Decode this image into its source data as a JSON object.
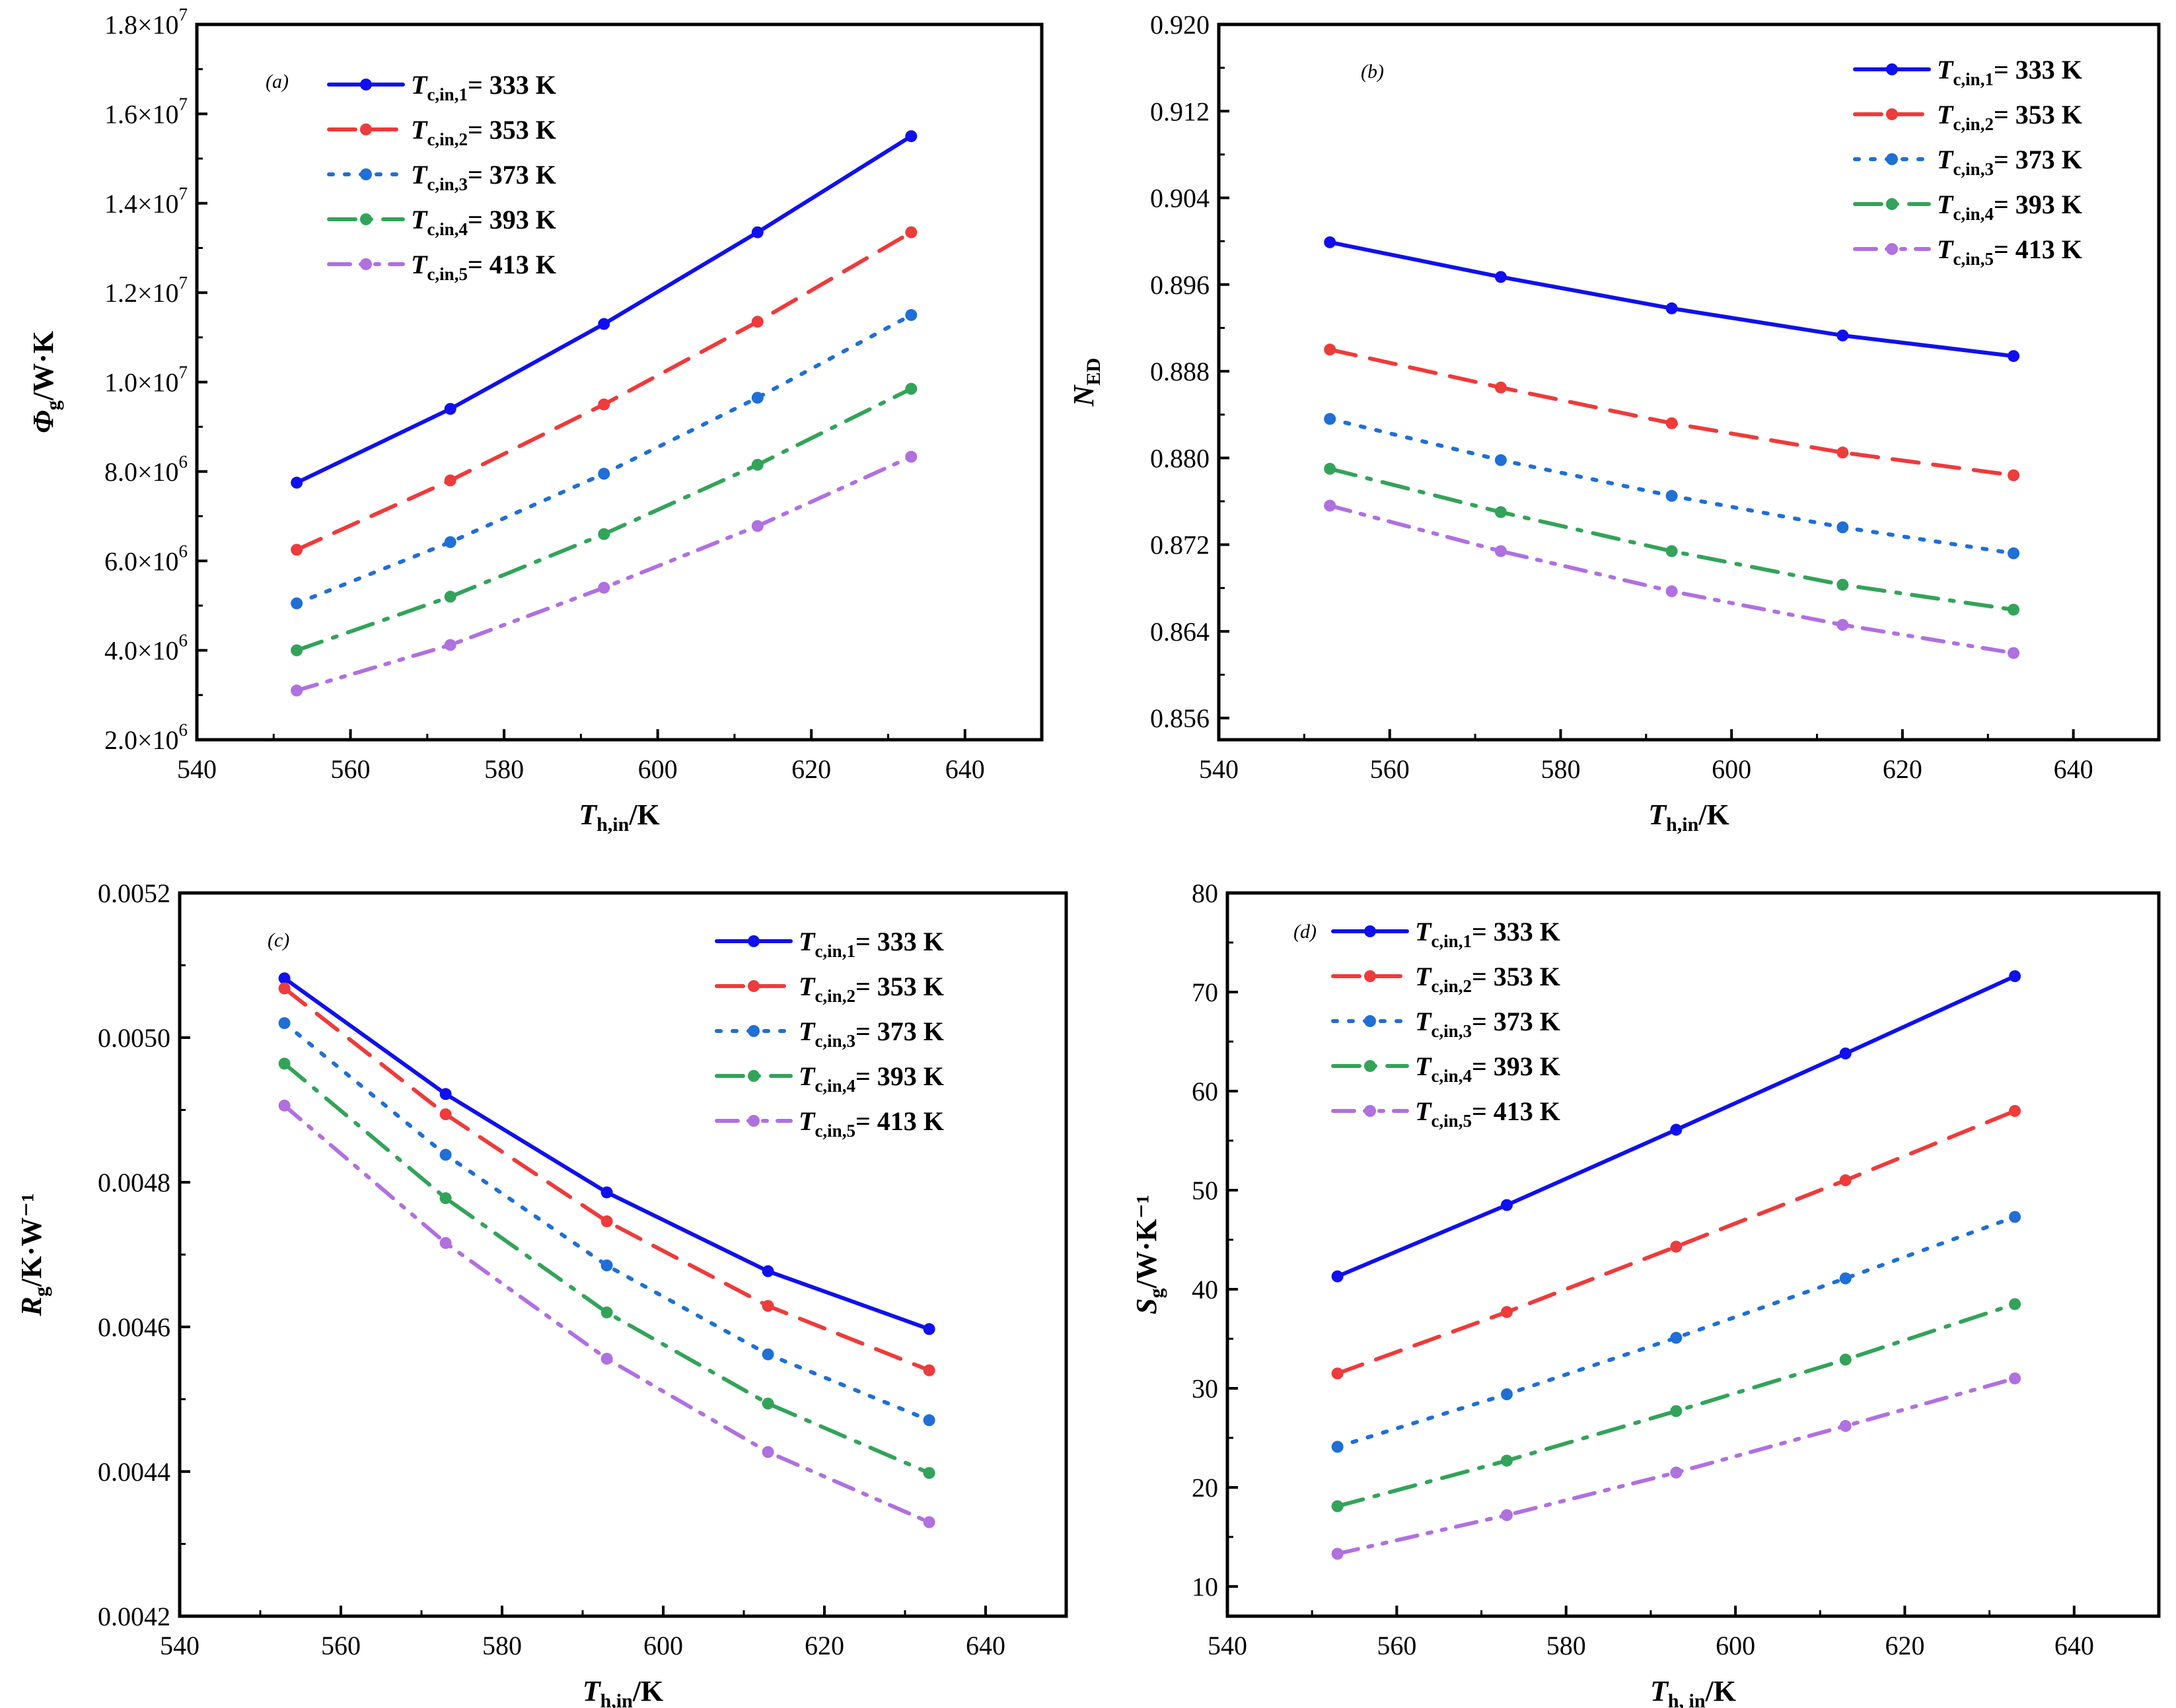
{
  "chart_data": [
    {
      "type": "line",
      "panel_label": "(a)",
      "x": [
        553,
        573,
        593,
        613,
        633
      ],
      "xlim": [
        540,
        650
      ],
      "xticks": [
        "540",
        "560",
        "580",
        "600",
        "620",
        "640"
      ],
      "xlabel": {
        "main": "T",
        "sub": "h,in",
        "suffix": "/K"
      },
      "ylabel": {
        "main": "Φ",
        "sub": "g",
        "suffix": "/W·K"
      },
      "ylim": [
        2000000,
        18000000
      ],
      "yticks": [
        {
          "value": 2000000,
          "mant": "2.0×10",
          "exp": "6"
        },
        {
          "value": 4000000,
          "mant": "4.0×10",
          "exp": "6"
        },
        {
          "value": 6000000,
          "mant": "6.0×10",
          "exp": "6"
        },
        {
          "value": 8000000,
          "mant": "8.0×10",
          "exp": "6"
        },
        {
          "value": 10000000,
          "mant": "1.0×10",
          "exp": "7"
        },
        {
          "value": 12000000,
          "mant": "1.2×10",
          "exp": "7"
        },
        {
          "value": 14000000,
          "mant": "1.4×10",
          "exp": "7"
        },
        {
          "value": 16000000,
          "mant": "1.6×10",
          "exp": "7"
        },
        {
          "value": 18000000,
          "mant": "1.8×10",
          "exp": "7"
        }
      ],
      "series": [
        {
          "name": "Tc,in,1= 333 K",
          "values": [
            7750000,
            9400000,
            11300000,
            13350000,
            15500000
          ]
        },
        {
          "name": "Tc,in,2= 353 K",
          "values": [
            6250000,
            7800000,
            9500000,
            11350000,
            13350000
          ]
        },
        {
          "name": "Tc,in,3= 373 K",
          "values": [
            5050000,
            6420000,
            7950000,
            9650000,
            11500000
          ]
        },
        {
          "name": "Tc,in,4= 393 K",
          "values": [
            4000000,
            5200000,
            6600000,
            8150000,
            9850000
          ]
        },
        {
          "name": "Tc,in,5= 413 K",
          "values": [
            3100000,
            4120000,
            5400000,
            6780000,
            8330000
          ]
        }
      ]
    },
    {
      "type": "line",
      "panel_label": "(b)",
      "x": [
        553,
        573,
        593,
        613,
        633
      ],
      "xlim": [
        540,
        650
      ],
      "xticks": [
        "540",
        "560",
        "580",
        "600",
        "620",
        "640"
      ],
      "xlabel": {
        "main": "T",
        "sub": "h,in",
        "suffix": "/K"
      },
      "ylabel": {
        "main": "N",
        "sub": "ED",
        "suffix": ""
      },
      "ylim": [
        0.854,
        0.92
      ],
      "yticks": [
        {
          "value": 0.856,
          "mant": "0.856"
        },
        {
          "value": 0.864,
          "mant": "0.864"
        },
        {
          "value": 0.872,
          "mant": "0.872"
        },
        {
          "value": 0.88,
          "mant": "0.880"
        },
        {
          "value": 0.888,
          "mant": "0.888"
        },
        {
          "value": 0.896,
          "mant": "0.896"
        },
        {
          "value": 0.904,
          "mant": "0.904"
        },
        {
          "value": 0.912,
          "mant": "0.912"
        },
        {
          "value": 0.92,
          "mant": "0.920"
        }
      ],
      "series": [
        {
          "name": "Tc,in,1= 333 K",
          "values": [
            0.8999,
            0.8967,
            0.8938,
            0.8913,
            0.8894
          ]
        },
        {
          "name": "Tc,in,2= 353 K",
          "values": [
            0.89,
            0.8865,
            0.8832,
            0.8805,
            0.8784
          ]
        },
        {
          "name": "Tc,in,3= 373 K",
          "values": [
            0.8836,
            0.8798,
            0.8765,
            0.8736,
            0.8712
          ]
        },
        {
          "name": "Tc,in,4= 393 K",
          "values": [
            0.879,
            0.875,
            0.8714,
            0.8683,
            0.866
          ]
        },
        {
          "name": "Tc,in,5= 413 K",
          "values": [
            0.8756,
            0.8714,
            0.8677,
            0.8646,
            0.862
          ]
        }
      ]
    },
    {
      "type": "line",
      "panel_label": "(c)",
      "x": [
        553,
        573,
        593,
        613,
        633
      ],
      "xlim": [
        540,
        650
      ],
      "xticks": [
        "540",
        "560",
        "580",
        "600",
        "620",
        "640"
      ],
      "xlabel": {
        "main": "T",
        "sub": "h,in",
        "suffix": "/K"
      },
      "ylabel": {
        "main": "R",
        "sub": "g",
        "suffix": "/K·W⁻¹"
      },
      "ylim": [
        0.0042,
        0.0052
      ],
      "yticks": [
        {
          "value": 0.0042,
          "mant": "0.0042"
        },
        {
          "value": 0.0044,
          "mant": "0.0044"
        },
        {
          "value": 0.0046,
          "mant": "0.0046"
        },
        {
          "value": 0.0048,
          "mant": "0.0048"
        },
        {
          "value": 0.005,
          "mant": "0.0050"
        },
        {
          "value": 0.0052,
          "mant": "0.0052"
        }
      ],
      "series": [
        {
          "name": "Tc,in,1= 333 K",
          "values": [
            0.005082,
            0.004922,
            0.004786,
            0.004677,
            0.004597
          ]
        },
        {
          "name": "Tc,in,2= 353 K",
          "values": [
            0.005068,
            0.004894,
            0.004746,
            0.004629,
            0.00454
          ]
        },
        {
          "name": "Tc,in,3= 373 K",
          "values": [
            0.00502,
            0.004838,
            0.004685,
            0.004562,
            0.004471
          ]
        },
        {
          "name": "Tc,in,4= 393 K",
          "values": [
            0.004964,
            0.004778,
            0.00462,
            0.004494,
            0.004398
          ]
        },
        {
          "name": "Tc,in,5= 413 K",
          "values": [
            0.004906,
            0.004716,
            0.004556,
            0.004427,
            0.00433
          ]
        }
      ]
    },
    {
      "type": "line",
      "panel_label": "(d)",
      "x": [
        553,
        573,
        593,
        613,
        633
      ],
      "xlim": [
        540,
        650
      ],
      "xticks": [
        "540",
        "560",
        "580",
        "600",
        "620",
        "640"
      ],
      "xlabel": {
        "main": "T",
        "sub": "h, in",
        "suffix": "/K"
      },
      "ylabel": {
        "main": "S",
        "sub": "g",
        "suffix": "/W·K⁻¹"
      },
      "ylim": [
        7,
        80
      ],
      "yticks": [
        {
          "value": 10,
          "mant": "10"
        },
        {
          "value": 20,
          "mant": "20"
        },
        {
          "value": 30,
          "mant": "30"
        },
        {
          "value": 40,
          "mant": "40"
        },
        {
          "value": 50,
          "mant": "50"
        },
        {
          "value": 60,
          "mant": "60"
        },
        {
          "value": 70,
          "mant": "70"
        },
        {
          "value": 80,
          "mant": "80"
        }
      ],
      "series": [
        {
          "name": "Tc,in,1= 333 K",
          "values": [
            41.3,
            48.5,
            56.1,
            63.8,
            71.6
          ]
        },
        {
          "name": "Tc,in,2= 353 K",
          "values": [
            31.5,
            37.7,
            44.3,
            51.0,
            58.0
          ]
        },
        {
          "name": "Tc,in,3= 373 K",
          "values": [
            24.1,
            29.4,
            35.1,
            41.1,
            47.3
          ]
        },
        {
          "name": "Tc,in,4= 393 K",
          "values": [
            18.1,
            22.7,
            27.7,
            32.9,
            38.5
          ]
        },
        {
          "name": "Tc,in,5= 413 K",
          "values": [
            13.3,
            17.2,
            21.5,
            26.2,
            31.0
          ]
        }
      ]
    }
  ],
  "legend": [
    {
      "main": "T",
      "sub": "c,in,1",
      "rest": "= 333 K",
      "color": "#1010ee",
      "style": "solid"
    },
    {
      "main": "T",
      "sub": "c,in,2",
      "rest": "= 353 K",
      "color": "#ee3b3b",
      "style": "dash"
    },
    {
      "main": "T",
      "sub": "c,in,3",
      "rest": "= 373 K",
      "color": "#1f6fd6",
      "style": "dot"
    },
    {
      "main": "T",
      "sub": "c,in,4",
      "rest": "= 393 K",
      "color": "#33a35a",
      "style": "dashdot"
    },
    {
      "main": "T",
      "sub": "c,in,5",
      "rest": "= 413 K",
      "color": "#b070e0",
      "style": "dashdotdot"
    }
  ]
}
